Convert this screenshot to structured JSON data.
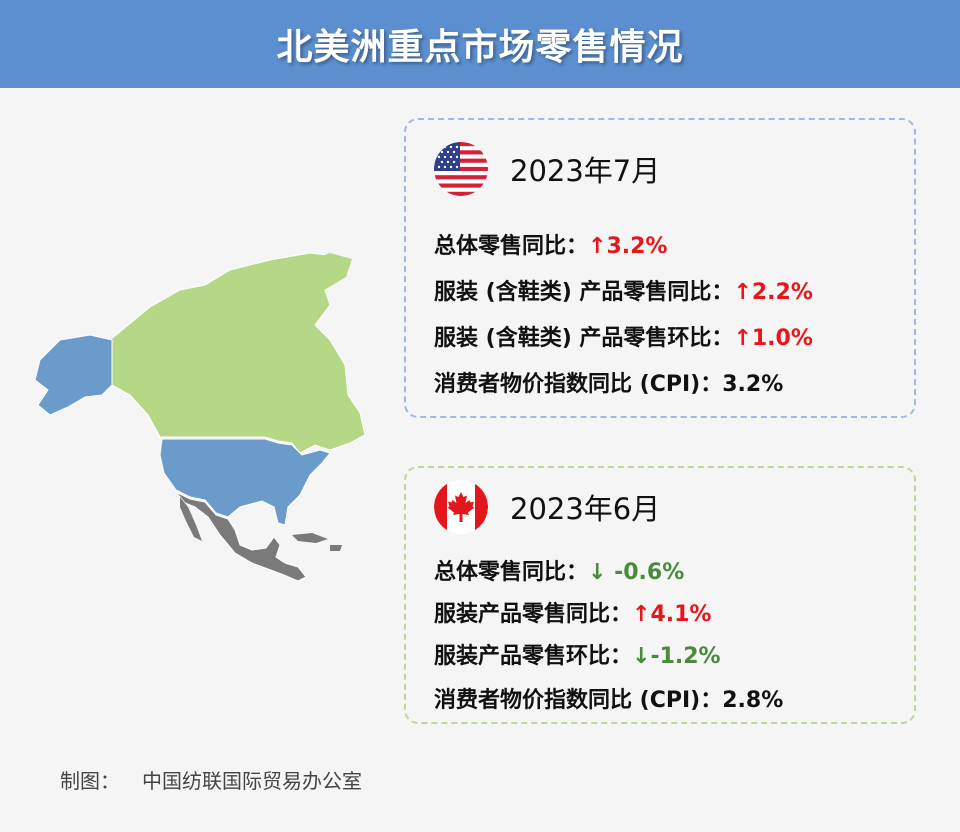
{
  "title": "北美洲重点市场零售情况",
  "us": {
    "flag_icon": "us-flag-icon",
    "period": "2023年7月",
    "stats": [
      {
        "label": "总体零售同比：",
        "value": "↑3.2%",
        "trend": "up"
      },
      {
        "label": "服装 (含鞋类) 产品零售同比：",
        "value": "↑2.2%",
        "trend": "up"
      },
      {
        "label": "服装 (含鞋类) 产品零售环比：",
        "value": "↑1.0%",
        "trend": "up"
      },
      {
        "label": "消费者物价指数同比 (CPI)：",
        "value": "3.2%",
        "trend": "none"
      }
    ]
  },
  "canada": {
    "flag_icon": "canada-flag-icon",
    "period": "2023年6月",
    "stats": [
      {
        "label": "总体零售同比：",
        "value": "↓ -0.6%",
        "trend": "down"
      },
      {
        "label": "服装产品零售同比：",
        "value": "↑4.1%",
        "trend": "up"
      },
      {
        "label": "服装产品零售环比：",
        "value": "↓-1.2%",
        "trend": "down"
      },
      {
        "label": "消费者物价指数同比 (CPI)：",
        "value": "2.8%",
        "trend": "none"
      }
    ]
  },
  "footer": {
    "label": "制图：",
    "source": "中国纺联国际贸易办公室"
  },
  "colors": {
    "header": "#5b8fcf",
    "up": "#e8161b",
    "down": "#4a8a3c",
    "us_map": "#6b9bcb",
    "canada_map": "#b5d886",
    "mexico_map": "#7a7a7a"
  }
}
